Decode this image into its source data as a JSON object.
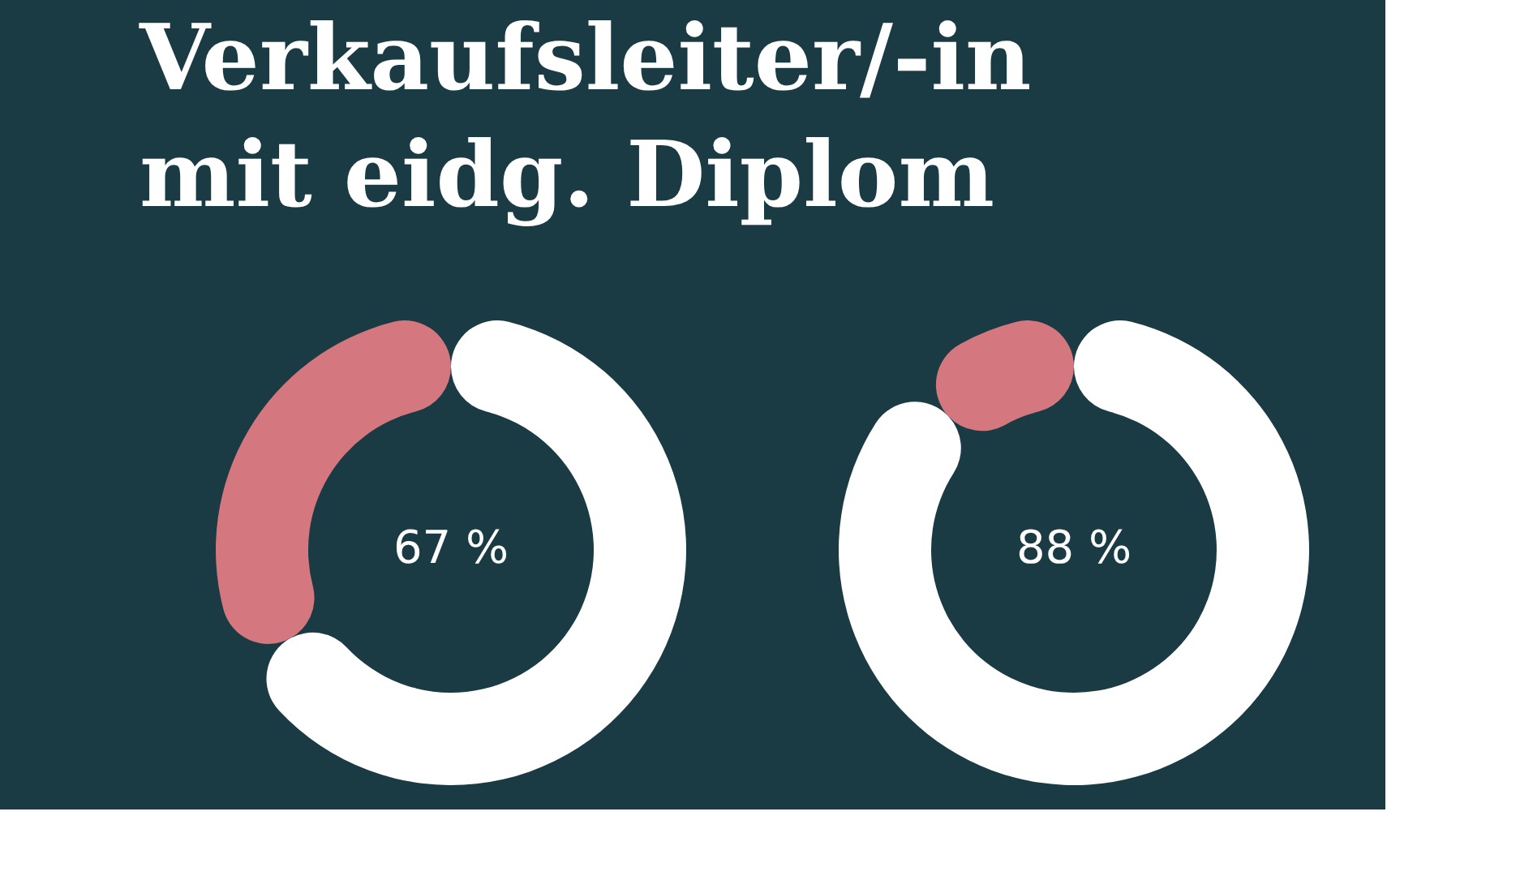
{
  "chart_data": [
    {
      "type": "donut",
      "title": "Verkaufsleiter/-in\nmit eidg. Diplom",
      "categories": [
        null,
        null
      ],
      "values": [
        67,
        33
      ],
      "colors": [
        "#ffffff",
        "#d4777f"
      ],
      "value_labels": [
        "67 %",
        null
      ],
      "legend": false
    },
    {
      "type": "donut",
      "categories": [
        null,
        null
      ],
      "values": [
        88,
        12
      ],
      "colors": [
        "#ffffff",
        "#d4777f"
      ],
      "value_labels": [
        "88 %",
        null
      ],
      "legend": false
    }
  ]
}
